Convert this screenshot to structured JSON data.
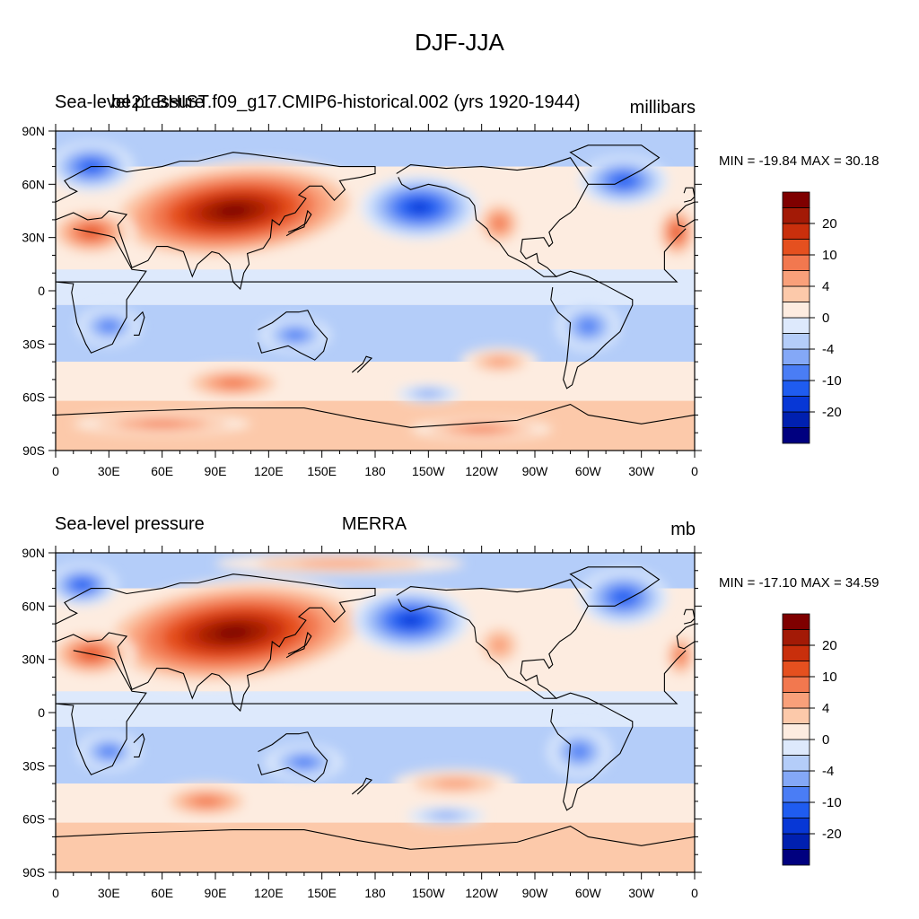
{
  "title": "DJF-JJA",
  "colormap": [
    "#00007f",
    "#0020b0",
    "#0737d6",
    "#1f5cf0",
    "#4a7df5",
    "#84a8f7",
    "#b4cdf9",
    "#dde9fc",
    "#fdece0",
    "#fcc9aa",
    "#f9a07a",
    "#f2784f",
    "#e5501f",
    "#c92f0c",
    "#a31a06",
    "#7f0000"
  ],
  "colorbar_labels": [
    "20",
    "10",
    "4",
    "0",
    "-4",
    "-10",
    "-20"
  ],
  "lat_ticks": [
    "90N",
    "60N",
    "30N",
    "0",
    "30S",
    "60S",
    "90S"
  ],
  "lon_ticks": [
    "0",
    "30E",
    "60E",
    "90E",
    "120E",
    "150E",
    "180",
    "150W",
    "120W",
    "90W",
    "60W",
    "30W",
    "0"
  ],
  "panels": [
    {
      "left_title": "Sea-level pressure",
      "center_title": "be21.BHIST.f09_g17.CMIP6-historical.002 (yrs 1920-1944)",
      "units": "millibars",
      "minmax": "MIN = -19.84 MAX =  30.18"
    },
    {
      "left_title": "Sea-level pressure",
      "center_title": "MERRA",
      "units": "mb",
      "minmax": "MIN = -17.10 MAX =  34.59"
    }
  ]
}
